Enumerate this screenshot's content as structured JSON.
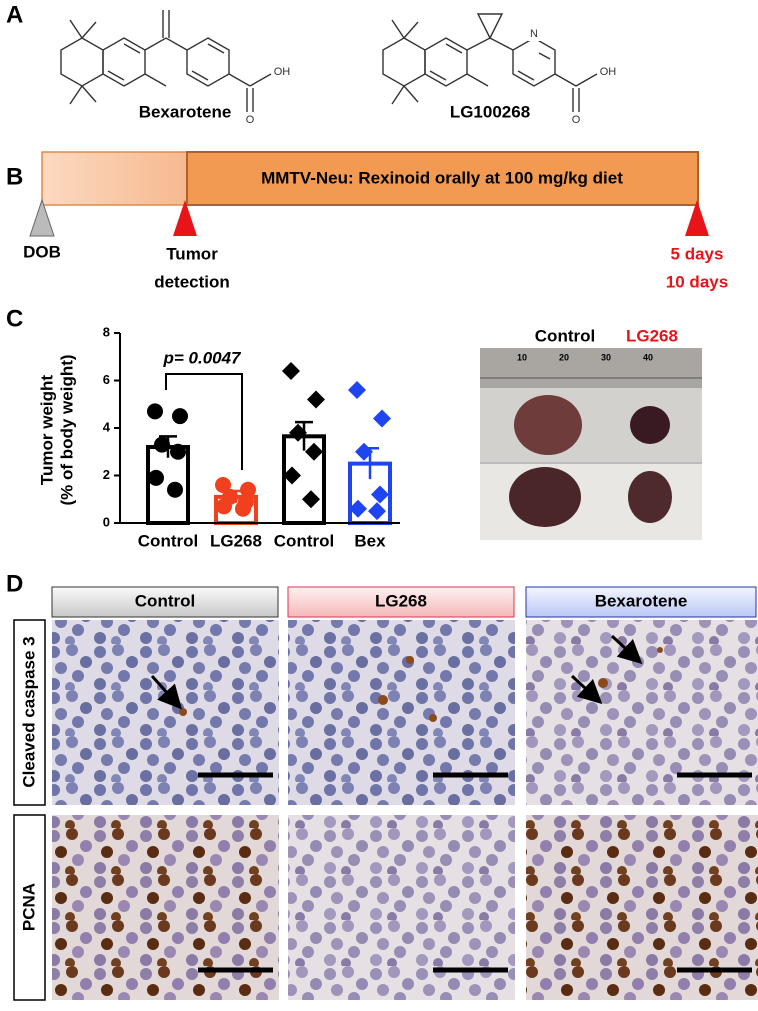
{
  "panel_labels": [
    "A",
    "B",
    "C",
    "D"
  ],
  "panel_a": {
    "molecules": [
      {
        "name": "Bexarotene",
        "atoms": [
          "O",
          "OH"
        ]
      },
      {
        "name": "LG100268",
        "atoms": [
          "N",
          "O",
          "OH"
        ]
      }
    ]
  },
  "panel_b": {
    "bar_label": "MMTV-Neu: Rexinoid orally at 100 mg/kg diet",
    "markers": [
      {
        "label": [
          "DOB"
        ]
      },
      {
        "label": [
          "Tumor",
          "detection"
        ]
      },
      {
        "label": [
          "5 days",
          "10 days"
        ]
      }
    ]
  },
  "chart_data": {
    "type": "bar",
    "categories": [
      "Control",
      "LG268",
      "Control",
      "Bex"
    ],
    "values": [
      3.2,
      1.1,
      3.65,
      2.5
    ],
    "errors": [
      0.45,
      0.25,
      0.6,
      0.65
    ],
    "colors": [
      "#000000",
      "#f0401e",
      "#000000",
      "#1f45f2"
    ],
    "markers": [
      "circle",
      "circle",
      "diamond",
      "diamond"
    ],
    "points": [
      [
        4.7,
        4.5,
        3.3,
        3.0,
        1.9,
        1.4
      ],
      [
        1.6,
        1.4,
        1.1,
        0.9,
        0.7,
        0.6
      ],
      [
        6.4,
        5.2,
        3.8,
        3.0,
        2.0,
        1.0
      ],
      [
        5.6,
        4.4,
        3.0,
        1.2,
        0.6,
        0.5
      ]
    ],
    "ylim": [
      0,
      8
    ],
    "yticks": [
      0,
      2,
      4,
      6,
      8
    ],
    "ylabel": [
      "Tumor weight",
      "(% of body weight)"
    ],
    "annotation": "p= 0.0047"
  },
  "panel_c_photo": {
    "labels": [
      "Control",
      "LG268"
    ],
    "ruler_ticks": [
      10,
      20,
      30,
      40
    ]
  },
  "panel_d": {
    "columns": [
      "Control",
      "LG268",
      "Bexarotene"
    ],
    "rows": [
      "Cleaved caspase 3",
      "PCNA"
    ]
  }
}
